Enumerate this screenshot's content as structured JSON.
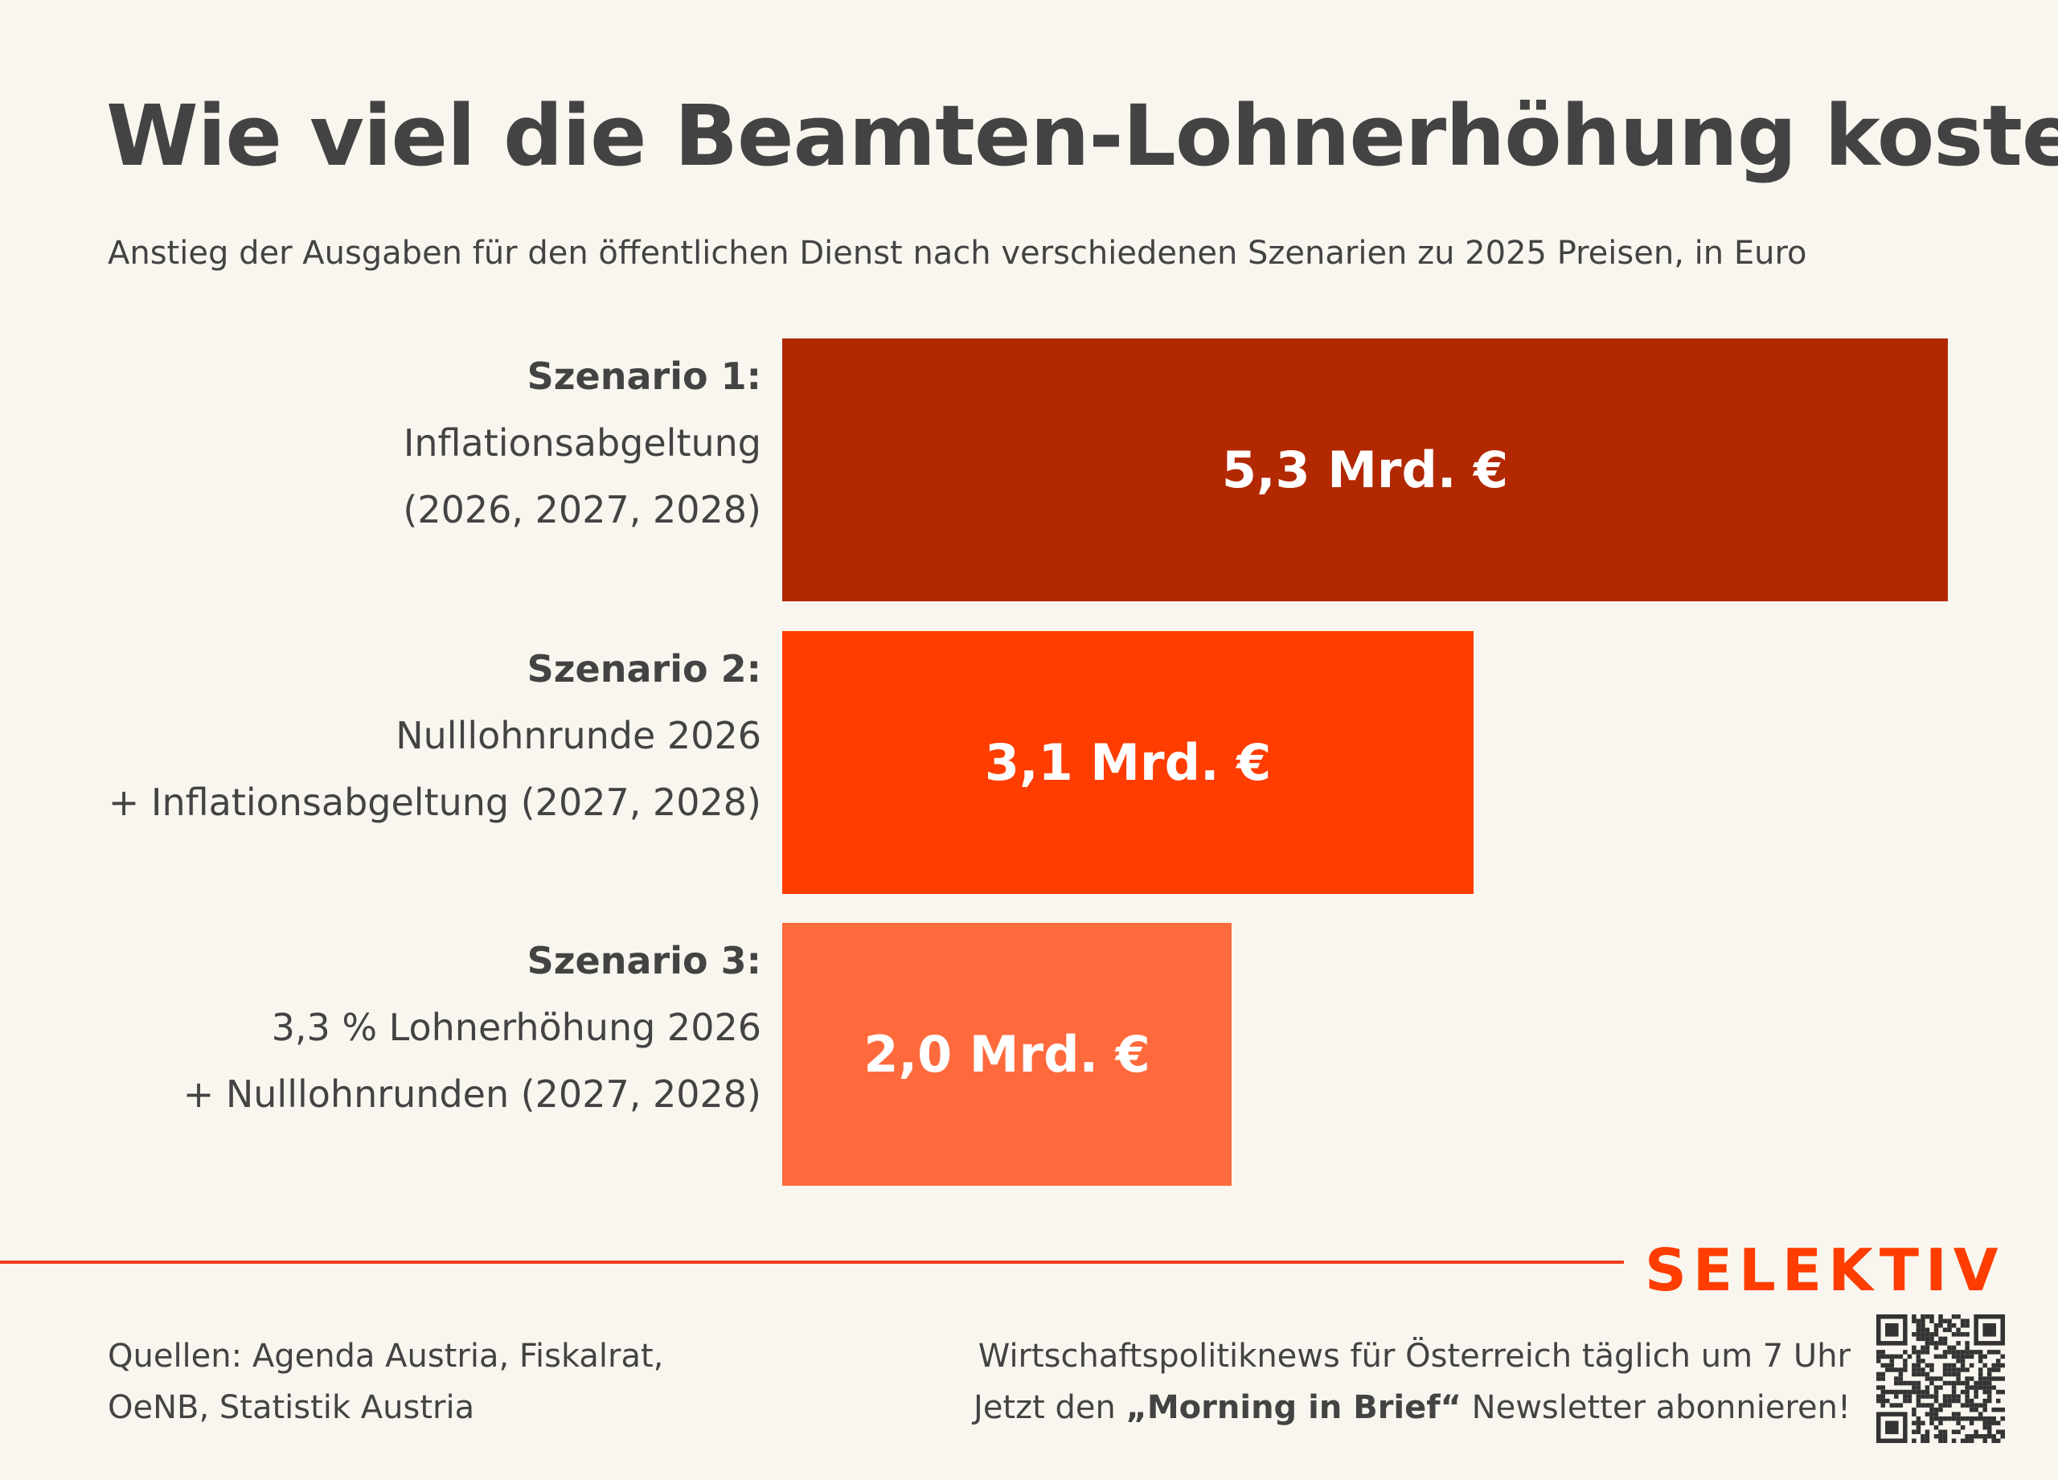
{
  "header": {
    "title": "Wie viel die Beamten-Lohnerhöhung kostet",
    "subtitle": "Anstieg der Ausgaben für den öffentlichen Dienst nach verschiedenen Szenarien zu 2025 Preisen, in Euro"
  },
  "chart_data": {
    "type": "bar",
    "orientation": "horizontal",
    "categories": [
      [
        "Szenario 1:",
        "Inflationsabgeltung",
        "(2026, 2027, 2028)"
      ],
      [
        "Szenario 2:",
        "Nulllohnrunde 2026",
        "+ Inflationsabgeltung (2027, 2028)"
      ],
      [
        "Szenario 3:",
        "3,3 % Lohnerhöhung 2026",
        "+  Nulllohnrunden (2027, 2028)"
      ]
    ],
    "values": [
      5.3,
      3.1,
      2.0
    ],
    "unit": "Mrd. €",
    "data_labels": [
      "5,3 Mrd. €",
      "3,1 Mrd. €",
      "2,0 Mrd. €"
    ],
    "colors": [
      "#B22800",
      "#FF3D00",
      "#FF6A3D"
    ],
    "grid": false
  },
  "footer": {
    "sources": [
      "Quellen: Agenda Austria, Fiskalrat,",
      "OeNB, Statistik Austria"
    ],
    "cta_line1": "Wirtschaftspolitiknews für Österreich täglich um 7 Uhr",
    "cta_pre": "Jetzt den ",
    "cta_bold": "„Morning in Brief“",
    "cta_post": " Newsletter abonnieren!",
    "logo": "SELEKTIV",
    "logo_color": "#FF3D00"
  }
}
